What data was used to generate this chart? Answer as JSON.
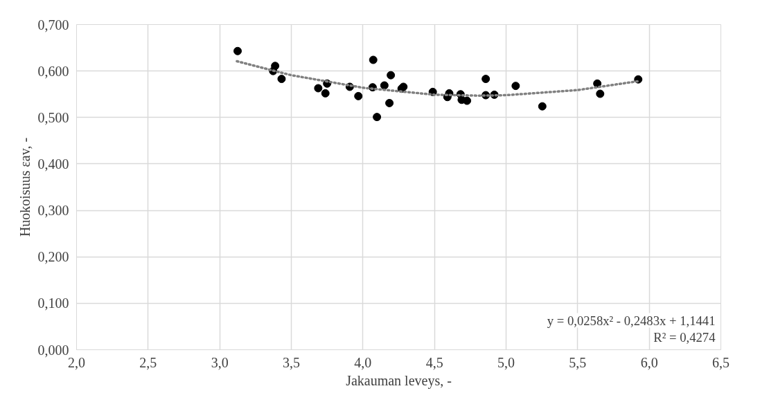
{
  "chart_data": {
    "type": "scatter",
    "xlabel": "Jakauman leveys, -",
    "ylabel": "Huokoisuus εav, -",
    "xlim": [
      2.0,
      6.5
    ],
    "xticks": [
      {
        "value": 2.0,
        "label": "2,0"
      },
      {
        "value": 2.5,
        "label": "2,5"
      },
      {
        "value": 3.0,
        "label": "3,0"
      },
      {
        "value": 3.5,
        "label": "3,5"
      },
      {
        "value": 4.0,
        "label": "4,0"
      },
      {
        "value": 4.5,
        "label": "4,5"
      },
      {
        "value": 5.0,
        "label": "5,0"
      },
      {
        "value": 5.5,
        "label": "5,5"
      },
      {
        "value": 6.0,
        "label": "6,0"
      },
      {
        "value": 6.5,
        "label": "6,5"
      }
    ],
    "ylim": [
      0,
      0.7
    ],
    "yticks": [
      {
        "value": 0,
        "label": "0,000"
      },
      {
        "value": 0.1,
        "label": "0,100"
      },
      {
        "value": 0.2,
        "label": "0,200"
      },
      {
        "value": 0.3,
        "label": "0,300"
      },
      {
        "value": 0.4,
        "label": "0,400"
      },
      {
        "value": 0.5,
        "label": "0,500"
      },
      {
        "value": 0.6,
        "label": "0,600"
      },
      {
        "value": 0.7,
        "label": "0,700"
      }
    ],
    "grid": true,
    "marker": "circle",
    "series": [
      {
        "color": "#000000",
        "x": [
          3.125,
          3.387,
          3.373,
          3.432,
          3.688,
          3.75,
          3.738,
          3.908,
          3.968,
          4.072,
          4.068,
          4.098,
          4.15,
          4.195,
          4.185,
          4.27,
          4.283,
          4.488,
          4.59,
          4.603,
          4.682,
          4.69,
          4.727,
          4.858,
          4.858,
          4.918,
          5.067,
          5.253,
          5.637,
          5.657,
          5.923
        ],
        "values": [
          0.643,
          0.611,
          0.6,
          0.583,
          0.563,
          0.573,
          0.552,
          0.566,
          0.546,
          0.624,
          0.565,
          0.501,
          0.569,
          0.591,
          0.531,
          0.562,
          0.566,
          0.555,
          0.544,
          0.552,
          0.55,
          0.538,
          0.536,
          0.583,
          0.548,
          0.549,
          0.568,
          0.524,
          0.573,
          0.551,
          0.582
        ]
      },
      {
        "type": "line",
        "color": "#808080",
        "line_style": "dotted",
        "marker": "none",
        "x": [
          3.12,
          3.5,
          4.0,
          4.5,
          4.81,
          5.0,
          5.5,
          5.92
        ],
        "values": [
          0.621,
          0.591,
          0.564,
          0.549,
          0.547,
          0.548,
          0.559,
          0.578
        ]
      }
    ],
    "annotations": [
      "y = 0,0258x² - 0,2483x + 1,1441",
      "R² = 0,4274"
    ]
  }
}
